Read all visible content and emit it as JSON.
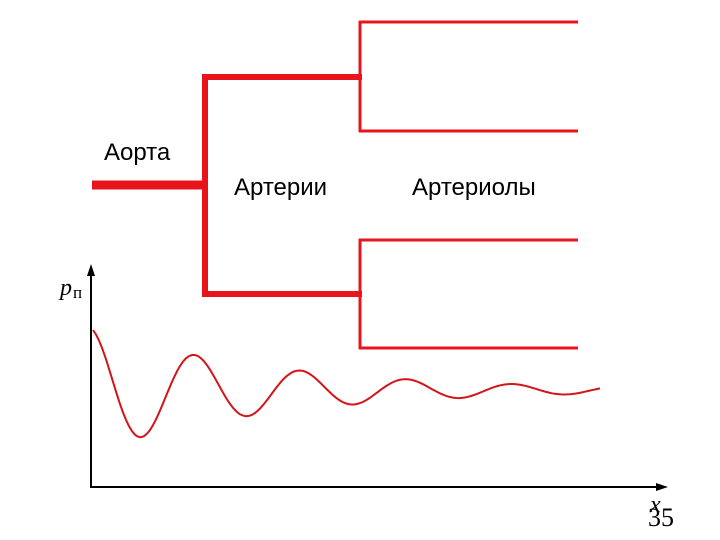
{
  "labels": {
    "aorta": "Аорта",
    "arteries": "Артерии",
    "arterioles": "Артериолы"
  },
  "axes": {
    "y_label": "p",
    "y_label_sub": "п",
    "x_label": "x"
  },
  "page_number": "35"
}
